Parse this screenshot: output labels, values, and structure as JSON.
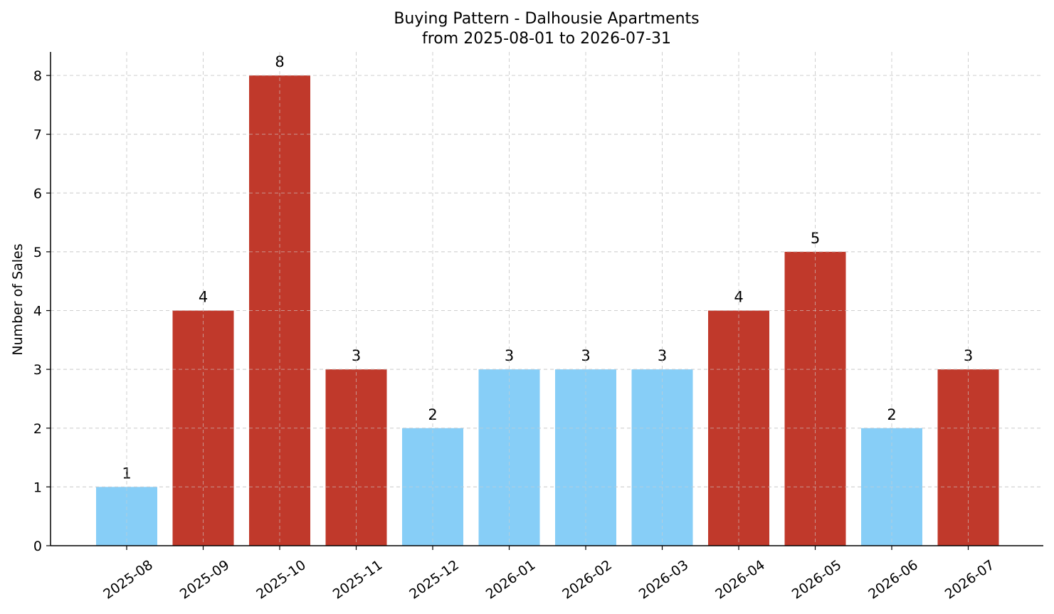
{
  "chart_data": {
    "type": "bar",
    "title": "Buying Pattern - Dalhousie Apartments",
    "subtitle": "from 2025-08-01 to 2026-07-31",
    "xlabel": "",
    "ylabel": "Number of Sales",
    "categories": [
      "2025-08",
      "2025-09",
      "2025-10",
      "2025-11",
      "2025-12",
      "2026-01",
      "2026-02",
      "2026-03",
      "2026-04",
      "2026-05",
      "2026-06",
      "2026-07"
    ],
    "values": [
      1,
      4,
      8,
      3,
      2,
      3,
      3,
      3,
      4,
      5,
      2,
      3
    ],
    "bar_colors": [
      "#87CEF7",
      "#C0392B",
      "#C0392B",
      "#C0392B",
      "#87CEF7",
      "#87CEF7",
      "#87CEF7",
      "#87CEF7",
      "#C0392B",
      "#C0392B",
      "#87CEF7",
      "#C0392B"
    ],
    "ylim": [
      0,
      8.4
    ],
    "yticks": [
      0,
      1,
      2,
      3,
      4,
      5,
      6,
      7,
      8
    ],
    "grid": true
  }
}
